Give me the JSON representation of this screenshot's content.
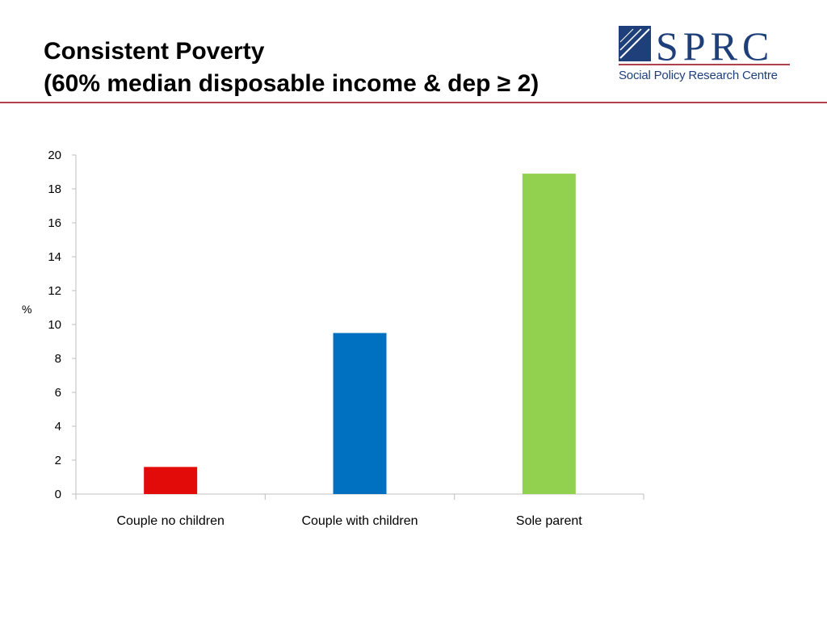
{
  "slide": {
    "title_line1": "Consistent Poverty",
    "title_line2": "(60% median disposable income & dep ≥ 2)"
  },
  "logo": {
    "mark": "SPRC",
    "subtitle": "Social Policy Research Centre",
    "color": "#1f3f7a"
  },
  "colors": {
    "rule": "#b0404a",
    "axis": "#bfbfbf"
  },
  "chart_data": {
    "type": "bar",
    "categories": [
      "Couple no children",
      "Couple with children",
      "Sole parent"
    ],
    "values": [
      1.6,
      9.5,
      18.9
    ],
    "bar_colors": [
      "#e30a0a",
      "#0070c0",
      "#92d050"
    ],
    "xlabel": "",
    "ylabel": "%",
    "ylim": [
      0,
      20
    ],
    "yticks": [
      0,
      2,
      4,
      6,
      8,
      10,
      12,
      14,
      16,
      18,
      20
    ],
    "grid": false,
    "legend": "none"
  }
}
